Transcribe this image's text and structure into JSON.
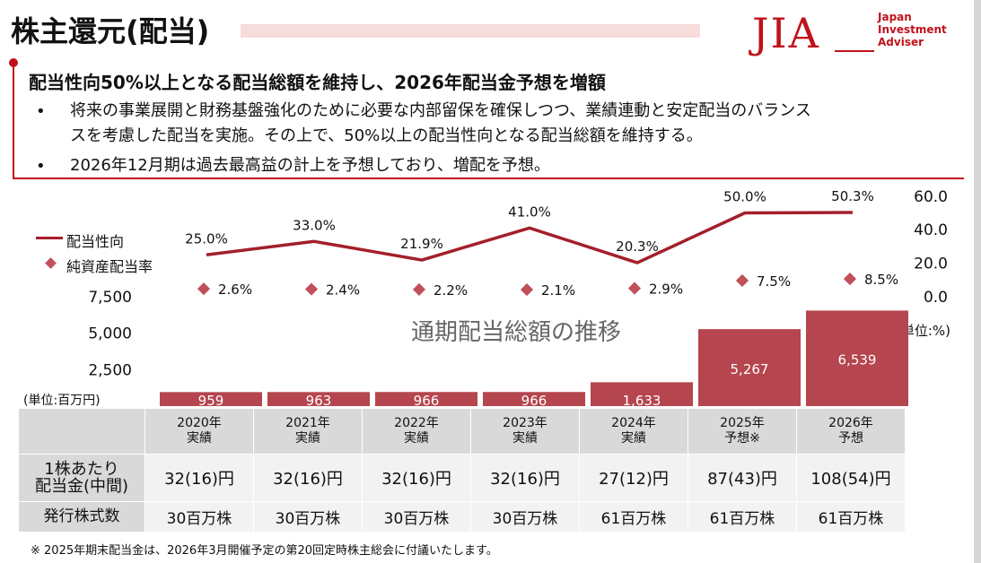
{
  "header": {
    "title": "株主還元(配当)",
    "logo_mark": "JIA",
    "logo_text": [
      "Japan",
      "Investment",
      "Adviser"
    ]
  },
  "summary": {
    "headline": "配当性向50%以上となる配当総額を維持し、2026年配当金予想を増額",
    "bullets": [
      [
        "将来の事業展開と財務基盤強化のために必要な内部留保を確保しつつ、業績連動と安定配当のバランス",
        "スを考慮した配当を実施。その上で、50%以上の配当性向となる配当総額を維持する。"
      ],
      [
        "2026年12月期は過去最高益の計上を予想しており、増配を予想。"
      ]
    ],
    "bullet_marker": "•"
  },
  "chart_data": {
    "type": "bar",
    "title": "通期配当総額の推移",
    "categories": [
      "2020年 実績",
      "2021年 実績",
      "2022年 実績",
      "2023年 実績",
      "2024年 実績",
      "2025年 予想※",
      "2026年 予想"
    ],
    "bar_unit": "(単位:百万円)",
    "line_unit": "(単位:%)",
    "series": [
      {
        "name": "",
        "kind": "bar",
        "axis": "left",
        "values": [
          959,
          963,
          966,
          966,
          1633,
          5267,
          6539
        ],
        "labels": [
          "959",
          "963",
          "966",
          "966",
          "1,633",
          "5,267",
          "6,539"
        ],
        "color": "#b5454e"
      },
      {
        "name": "配当性向",
        "kind": "line",
        "axis": "right",
        "values": [
          25.0,
          33.0,
          21.9,
          41.0,
          20.3,
          50.0,
          50.3
        ],
        "labels": [
          "25.0%",
          "33.0%",
          "21.9%",
          "41.0%",
          "20.3%",
          "50.0%",
          "50.3%"
        ],
        "color": "#a31f2a"
      },
      {
        "name": "純資産配当率",
        "kind": "scatter",
        "axis": "right",
        "values": [
          2.6,
          2.4,
          2.2,
          2.1,
          2.9,
          7.5,
          8.5
        ],
        "labels": [
          "2.6%",
          "2.4%",
          "2.2%",
          "2.1%",
          "2.9%",
          "7.5%",
          "8.5%"
        ],
        "color": "#c0505a"
      }
    ],
    "y_left": {
      "ticks": [
        "2,500",
        "5,000",
        "7,500"
      ],
      "values": [
        2500,
        5000,
        7500
      ]
    },
    "y_right": {
      "ticks": [
        "0.0",
        "20.0",
        "40.0",
        "60.0"
      ],
      "values": [
        0,
        20,
        40,
        60
      ]
    },
    "legend_position": "left"
  },
  "table": {
    "columns": [
      [
        "2020年",
        "実績"
      ],
      [
        "2021年",
        "実績"
      ],
      [
        "2022年",
        "実績"
      ],
      [
        "2023年",
        "実績"
      ],
      [
        "2024年",
        "実績"
      ],
      [
        "2025年",
        "予想※"
      ],
      [
        "2026年",
        "予想"
      ]
    ],
    "dividend_label": [
      "1株あたり",
      "配当金(中間)"
    ],
    "dividends": [
      "32(16)円",
      "32(16)円",
      "32(16)円",
      "32(16)円",
      "27(12)円",
      "87(43)円",
      "108(54)円"
    ],
    "shares_label": "発行株式数",
    "shares": [
      "30百万株",
      "30百万株",
      "30百万株",
      "30百万株",
      "61百万株",
      "61百万株",
      "61百万株"
    ]
  },
  "footnote": "※  2025年期末配当金は、2026年3月開催予定の第20回定時株主総会に付議いたします。"
}
